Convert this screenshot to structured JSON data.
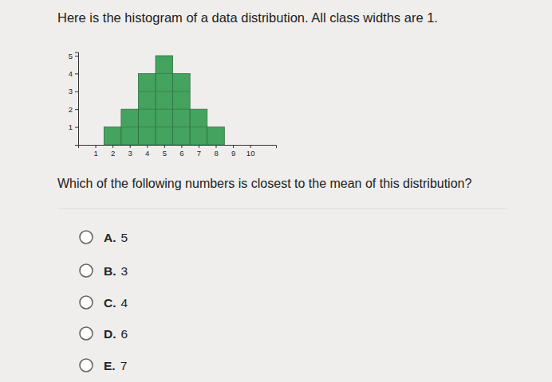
{
  "header": {
    "text": "Here is the histogram of a data distribution. All class widths are 1."
  },
  "chart_data": {
    "type": "histogram",
    "bins": [
      1.5,
      2.5,
      3.5,
      4.5,
      5.5,
      6.5,
      7.5,
      8.5
    ],
    "values": [
      1,
      2,
      4,
      5,
      4,
      2,
      1
    ],
    "color": "#44a35f",
    "xlim": [
      0,
      11.5
    ],
    "xticks": [
      1,
      2,
      3,
      4,
      5,
      6,
      7,
      8,
      9,
      10
    ],
    "ylim": [
      0,
      5.2
    ],
    "yticks": [
      1,
      2,
      3,
      4,
      5
    ]
  },
  "question": {
    "text": "Which of the following numbers is closest to the mean of this distribution?"
  },
  "options": [
    {
      "letter": "A.",
      "text": "5"
    },
    {
      "letter": "B.",
      "text": "3"
    },
    {
      "letter": "C.",
      "text": "4"
    },
    {
      "letter": "D.",
      "text": "6"
    },
    {
      "letter": "E.",
      "text": "7"
    }
  ]
}
